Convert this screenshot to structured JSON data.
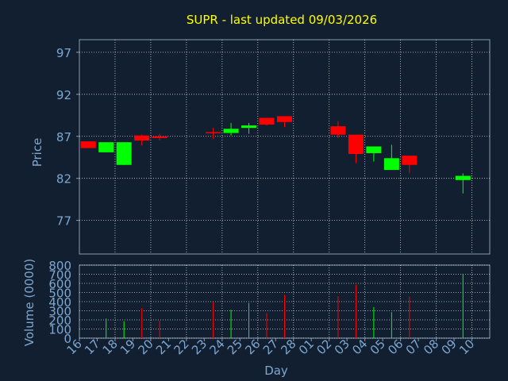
{
  "title": "SUPR - last updated 09/03/2026",
  "colors": {
    "background": "#111f30",
    "axis": "#8a9cb4",
    "grid": "#ffffff",
    "tick_text": "#7ea7cf",
    "title": "#ffff00",
    "up": "#00ff00",
    "down": "#ff0000"
  },
  "chart_data": [
    {
      "type": "candlestick",
      "ylabel": "Price",
      "ylim": [
        73,
        98.5
      ],
      "yticks": [
        77,
        82,
        87,
        92,
        97
      ],
      "grid": true,
      "x": [
        "16",
        "17",
        "18",
        "19",
        "20",
        "21",
        "22",
        "23",
        "24",
        "25",
        "26",
        "27",
        "28",
        "01",
        "02",
        "03",
        "04",
        "05",
        "06",
        "07",
        "08",
        "09",
        "10"
      ],
      "ohlc": [
        {
          "x": "16",
          "open": 86.4,
          "high": 86.4,
          "low": 85.6,
          "close": 85.6
        },
        {
          "x": "17",
          "open": 85.1,
          "high": 86.3,
          "low": 85.1,
          "close": 86.3
        },
        {
          "x": "18",
          "open": 83.6,
          "high": 86.3,
          "low": 83.6,
          "close": 86.3
        },
        {
          "x": "19",
          "open": 87.1,
          "high": 87.2,
          "low": 85.9,
          "close": 86.5
        },
        {
          "x": "20",
          "open": 87.0,
          "high": 87.3,
          "low": 86.5,
          "close": 86.8
        },
        {
          "x": "23",
          "open": 87.5,
          "high": 88.0,
          "low": 86.7,
          "close": 87.4
        },
        {
          "x": "24",
          "open": 87.4,
          "high": 88.6,
          "low": 87.1,
          "close": 87.9
        },
        {
          "x": "25",
          "open": 88.0,
          "high": 88.6,
          "low": 87.3,
          "close": 88.3
        },
        {
          "x": "26",
          "open": 89.2,
          "high": 89.2,
          "low": 88.3,
          "close": 88.4
        },
        {
          "x": "27",
          "open": 89.4,
          "high": 89.4,
          "low": 88.1,
          "close": 88.7
        },
        {
          "x": "02",
          "open": 88.2,
          "high": 88.8,
          "low": 86.8,
          "close": 87.2
        },
        {
          "x": "03",
          "open": 87.2,
          "high": 87.2,
          "low": 83.8,
          "close": 84.9
        },
        {
          "x": "04",
          "open": 85.0,
          "high": 85.8,
          "low": 84.0,
          "close": 85.8
        },
        {
          "x": "05",
          "open": 83.0,
          "high": 86.0,
          "low": 83.0,
          "close": 84.4
        },
        {
          "x": "06",
          "open": 84.7,
          "high": 84.7,
          "low": 82.6,
          "close": 83.6
        },
        {
          "x": "09",
          "open": 81.8,
          "high": 82.6,
          "low": 80.2,
          "close": 82.3
        }
      ]
    },
    {
      "type": "bar",
      "ylabel": "Volume (0000)",
      "xlabel": "Day",
      "ylim": [
        0,
        800
      ],
      "yticks": [
        0,
        100,
        200,
        300,
        400,
        500,
        600,
        700,
        800
      ],
      "grid": true,
      "x": [
        "16",
        "17",
        "18",
        "19",
        "20",
        "21",
        "22",
        "23",
        "24",
        "25",
        "26",
        "27",
        "28",
        "01",
        "02",
        "03",
        "04",
        "05",
        "06",
        "07",
        "08",
        "09",
        "10"
      ],
      "volume": [
        {
          "x": "17",
          "value": 215,
          "direction": "up"
        },
        {
          "x": "18",
          "value": 185,
          "direction": "up"
        },
        {
          "x": "19",
          "value": 330,
          "direction": "down"
        },
        {
          "x": "20",
          "value": 190,
          "direction": "down"
        },
        {
          "x": "23",
          "value": 395,
          "direction": "down"
        },
        {
          "x": "24",
          "value": 310,
          "direction": "up"
        },
        {
          "x": "25",
          "value": 385,
          "direction": "up"
        },
        {
          "x": "26",
          "value": 275,
          "direction": "down"
        },
        {
          "x": "27",
          "value": 475,
          "direction": "down"
        },
        {
          "x": "02",
          "value": 460,
          "direction": "down"
        },
        {
          "x": "03",
          "value": 585,
          "direction": "down"
        },
        {
          "x": "04",
          "value": 340,
          "direction": "up"
        },
        {
          "x": "05",
          "value": 285,
          "direction": "up"
        },
        {
          "x": "06",
          "value": 455,
          "direction": "down"
        },
        {
          "x": "09",
          "value": 705,
          "direction": "up"
        }
      ]
    }
  ]
}
